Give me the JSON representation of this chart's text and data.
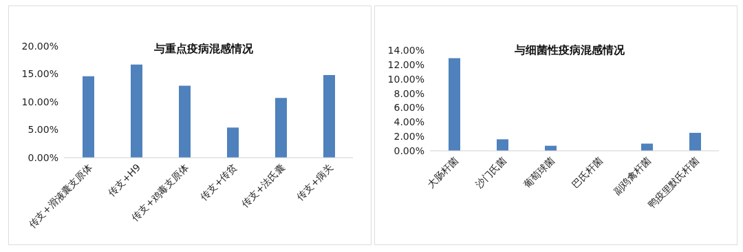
{
  "chart_data": [
    {
      "type": "bar",
      "title": "与重点疫病混感情况",
      "categories": [
        "传支+滑液囊支原体",
        "传支+H9",
        "传支+鸡毒支原体",
        "传支+传贫",
        "传支+法氏囊",
        "传支+病关"
      ],
      "values": [
        14.6,
        16.7,
        12.9,
        5.4,
        10.7,
        14.8
      ],
      "color": "#4f81bd",
      "ylim": [
        0,
        20
      ],
      "yticks": [
        {
          "value": 0,
          "label": "0.00%"
        },
        {
          "value": 5,
          "label": "5.00%"
        },
        {
          "value": 10,
          "label": "10.00%"
        },
        {
          "value": 15,
          "label": "15.00%"
        },
        {
          "value": 20,
          "label": "20.00%"
        }
      ],
      "grid": false,
      "legend": false
    },
    {
      "type": "bar",
      "title": "与细菌性疫病混感情况",
      "categories": [
        "大肠杆菌",
        "沙门氏菌",
        "葡萄球菌",
        "巴氏杆菌",
        "副鸡禽杆菌",
        "鸭疫里默氏杆菌"
      ],
      "values": [
        12.9,
        1.6,
        0.7,
        0,
        1.0,
        2.5
      ],
      "color": "#4f81bd",
      "ylim": [
        0,
        14
      ],
      "yticks": [
        {
          "value": 0,
          "label": "0.00%"
        },
        {
          "value": 2,
          "label": "2.00%"
        },
        {
          "value": 4,
          "label": "4.00%"
        },
        {
          "value": 6,
          "label": "6.00%"
        },
        {
          "value": 8,
          "label": "8.00%"
        },
        {
          "value": 10,
          "label": "10.00%"
        },
        {
          "value": 12,
          "label": "12.00%"
        },
        {
          "value": 14,
          "label": "14.00%"
        }
      ],
      "grid": false,
      "legend": false
    }
  ]
}
